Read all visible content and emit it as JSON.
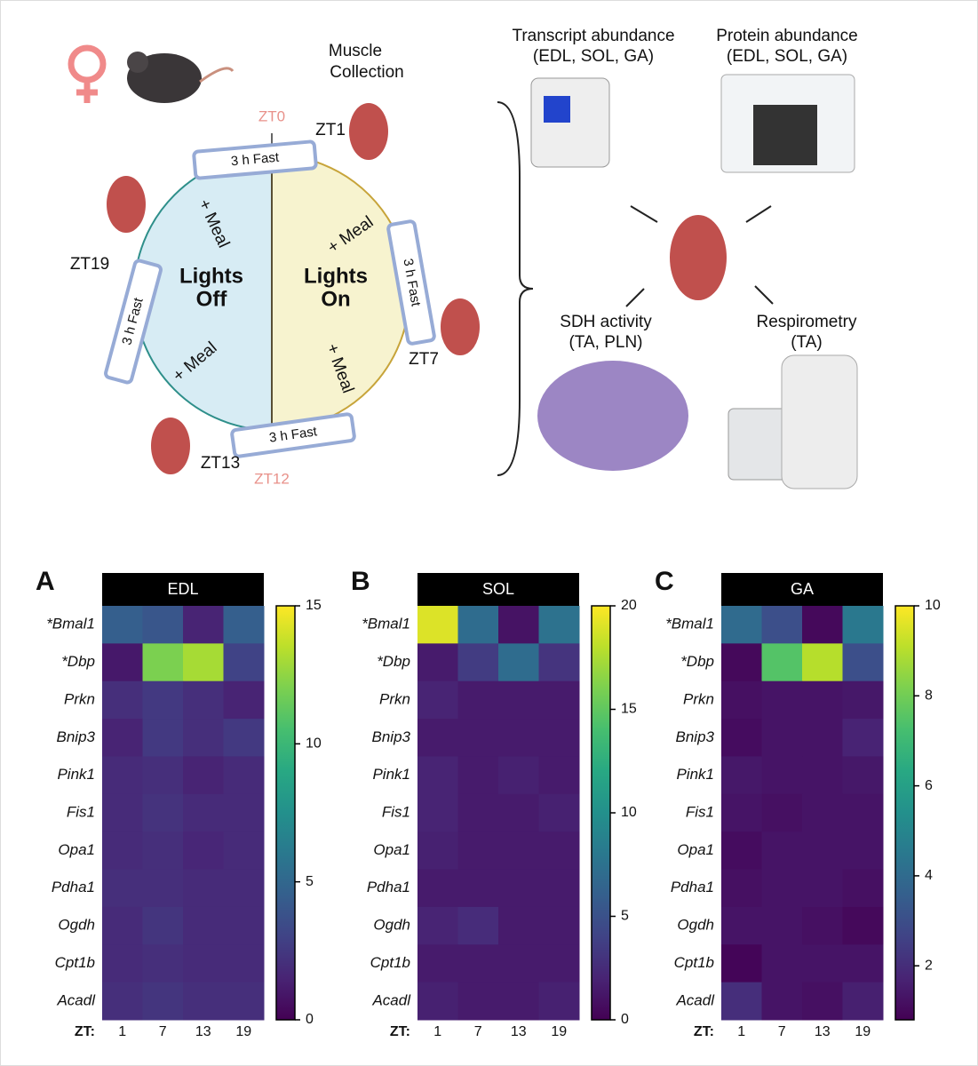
{
  "schematic": {
    "muscle_collection": [
      "Muscle",
      "Collection"
    ],
    "zt": [
      "ZT0",
      "ZT1",
      "ZT7",
      "ZT12",
      "ZT13",
      "ZT19"
    ],
    "fasts": [
      "3 h Fast",
      "3 h Fast",
      "3 h Fast",
      "3 h Fast"
    ],
    "meals": [
      "+ Meal",
      "+ Meal",
      "+ Meal",
      "+ Meal"
    ],
    "lights_off": [
      "Lights",
      "Off"
    ],
    "lights_on": [
      "Lights",
      "On"
    ],
    "assays": [
      {
        "title": "Transcript abundance",
        "tissues": "(EDL, SOL, GA)"
      },
      {
        "title": "Protein abundance",
        "tissues": "(EDL, SOL, GA)"
      },
      {
        "title": "SDH activity",
        "tissues": "(TA, PLN)"
      },
      {
        "title": "Respirometry",
        "tissues": "(TA)"
      }
    ]
  },
  "chart_data": [
    {
      "type": "heatmap",
      "panel": "A",
      "title": "EDL",
      "x_label": "ZT:",
      "columns": [
        "1",
        "7",
        "13",
        "19"
      ],
      "rows": [
        "*Bmal1",
        "*Dbp",
        "Prkn",
        "Bnip3",
        "Pink1",
        "Fis1",
        "Opa1",
        "Pdha1",
        "Ogdh",
        "Cpt1b",
        "Acadl"
      ],
      "colormap": "viridis",
      "clim": [
        0,
        15
      ],
      "cticks": [
        0,
        5,
        10,
        15
      ],
      "values": [
        [
          4.5,
          4,
          1.5,
          4.5
        ],
        [
          1,
          12,
          13,
          3
        ],
        [
          2,
          2.5,
          2,
          1.5
        ],
        [
          1.5,
          2.5,
          2,
          2.5
        ],
        [
          1.8,
          2,
          1.5,
          1.8
        ],
        [
          1.8,
          2.2,
          1.8,
          1.8
        ],
        [
          1.8,
          2,
          1.6,
          1.8
        ],
        [
          2,
          2,
          1.8,
          1.8
        ],
        [
          1.8,
          2.3,
          1.8,
          1.8
        ],
        [
          1.8,
          2,
          1.8,
          1.8
        ],
        [
          2,
          2.3,
          2,
          2
        ]
      ]
    },
    {
      "type": "heatmap",
      "panel": "B",
      "title": "SOL",
      "x_label": "ZT:",
      "columns": [
        "1",
        "7",
        "13",
        "19"
      ],
      "rows": [
        "*Bmal1",
        "*Dbp",
        "Prkn",
        "Bnip3",
        "Pink1",
        "Fis1",
        "Opa1",
        "Pdha1",
        "Ogdh",
        "Cpt1b",
        "Acadl"
      ],
      "colormap": "viridis",
      "clim": [
        0,
        20
      ],
      "cticks": [
        0,
        5,
        10,
        15,
        20
      ],
      "values": [
        [
          19,
          7,
          1,
          7.5
        ],
        [
          1.5,
          3.5,
          7,
          3
        ],
        [
          2,
          1.5,
          1.5,
          1.5
        ],
        [
          1.5,
          1.5,
          1.5,
          1.5
        ],
        [
          2,
          1.5,
          1.8,
          1.5
        ],
        [
          2,
          1.5,
          1.5,
          1.8
        ],
        [
          1.8,
          1.5,
          1.5,
          1.5
        ],
        [
          1.5,
          1.5,
          1.5,
          1.5
        ],
        [
          2,
          2.5,
          1.5,
          1.5
        ],
        [
          1.5,
          1.5,
          1.5,
          1.5
        ],
        [
          1.8,
          1.5,
          1.5,
          1.8
        ]
      ]
    },
    {
      "type": "heatmap",
      "panel": "C",
      "title": "GA",
      "x_label": "ZT:",
      "columns": [
        "1",
        "7",
        "13",
        "19"
      ],
      "rows": [
        "*Bmal1",
        "*Dbp",
        "Prkn",
        "Bnip3",
        "Pink1",
        "Fis1",
        "Opa1",
        "Pdha1",
        "Ogdh",
        "Cpt1b",
        "Acadl"
      ],
      "colormap": "viridis",
      "clim": [
        0.8,
        10
      ],
      "cticks": [
        2,
        4,
        6,
        8,
        10
      ],
      "values": [
        [
          4,
          3,
          1,
          4.5
        ],
        [
          1,
          7.5,
          9,
          3
        ],
        [
          1.2,
          1.3,
          1.3,
          1.4
        ],
        [
          1.1,
          1.3,
          1.3,
          1.7
        ],
        [
          1.4,
          1.3,
          1.3,
          1.4
        ],
        [
          1.3,
          1.2,
          1.3,
          1.3
        ],
        [
          1.1,
          1.3,
          1.3,
          1.3
        ],
        [
          1.2,
          1.3,
          1.3,
          1.2
        ],
        [
          1.3,
          1.3,
          1.2,
          1
        ],
        [
          0.9,
          1.3,
          1.3,
          1.3
        ],
        [
          2,
          1.3,
          1.2,
          1.6
        ]
      ]
    }
  ]
}
